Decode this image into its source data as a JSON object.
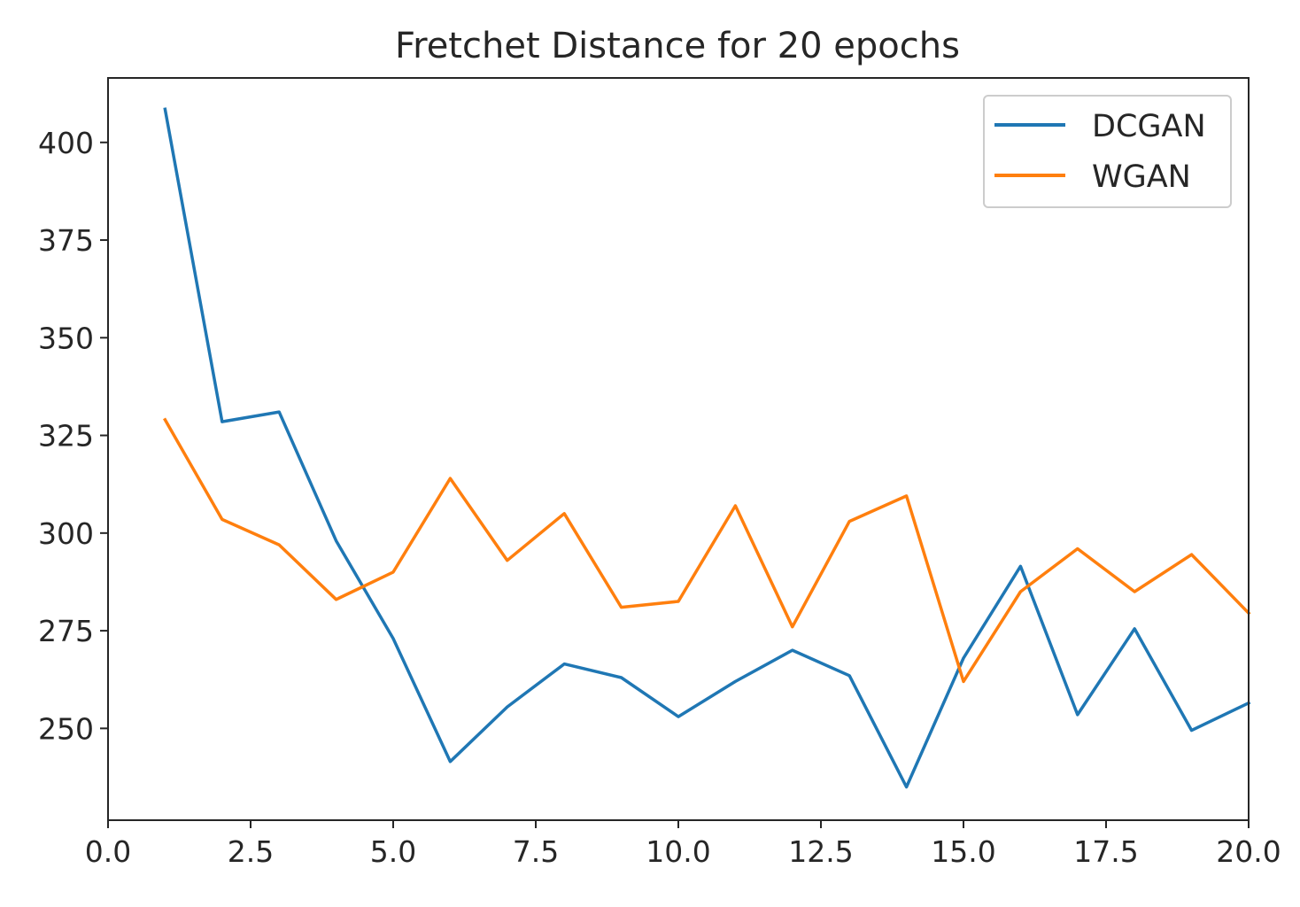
{
  "chart_data": {
    "type": "line",
    "title": "Fretchet Distance for 20 epochs",
    "xlabel": "",
    "ylabel": "",
    "xlim": [
      0.0,
      20.0
    ],
    "ylim": [
      226.5,
      416.5
    ],
    "xticks": [
      0.0,
      2.5,
      5.0,
      7.5,
      10.0,
      12.5,
      15.0,
      17.5,
      20.0
    ],
    "xtick_labels": [
      "0.0",
      "2.5",
      "5.0",
      "7.5",
      "10.0",
      "12.5",
      "15.0",
      "17.5",
      "20.0"
    ],
    "yticks": [
      250,
      275,
      300,
      325,
      350,
      375,
      400
    ],
    "ytick_labels": [
      "250",
      "275",
      "300",
      "325",
      "350",
      "375",
      "400"
    ],
    "grid": false,
    "legend_position": "top-right",
    "x": [
      1,
      2,
      3,
      4,
      5,
      6,
      7,
      8,
      9,
      10,
      11,
      12,
      13,
      14,
      15,
      16,
      17,
      18,
      19,
      20
    ],
    "series": [
      {
        "name": "DCGAN",
        "color": "#1f77b4",
        "values": [
          408.5,
          328.5,
          331,
          298,
          273,
          241.5,
          255.5,
          266.5,
          263,
          253,
          262,
          270,
          263.5,
          235,
          268,
          291.5,
          253.5,
          275.5,
          249.5,
          256.5
        ]
      },
      {
        "name": "WGAN",
        "color": "#ff7f0e",
        "values": [
          329,
          303.5,
          297,
          283,
          290,
          314,
          293,
          305,
          281,
          282.5,
          307,
          276,
          303,
          309.5,
          262,
          285,
          296,
          285,
          294.5,
          279.5
        ]
      }
    ]
  }
}
